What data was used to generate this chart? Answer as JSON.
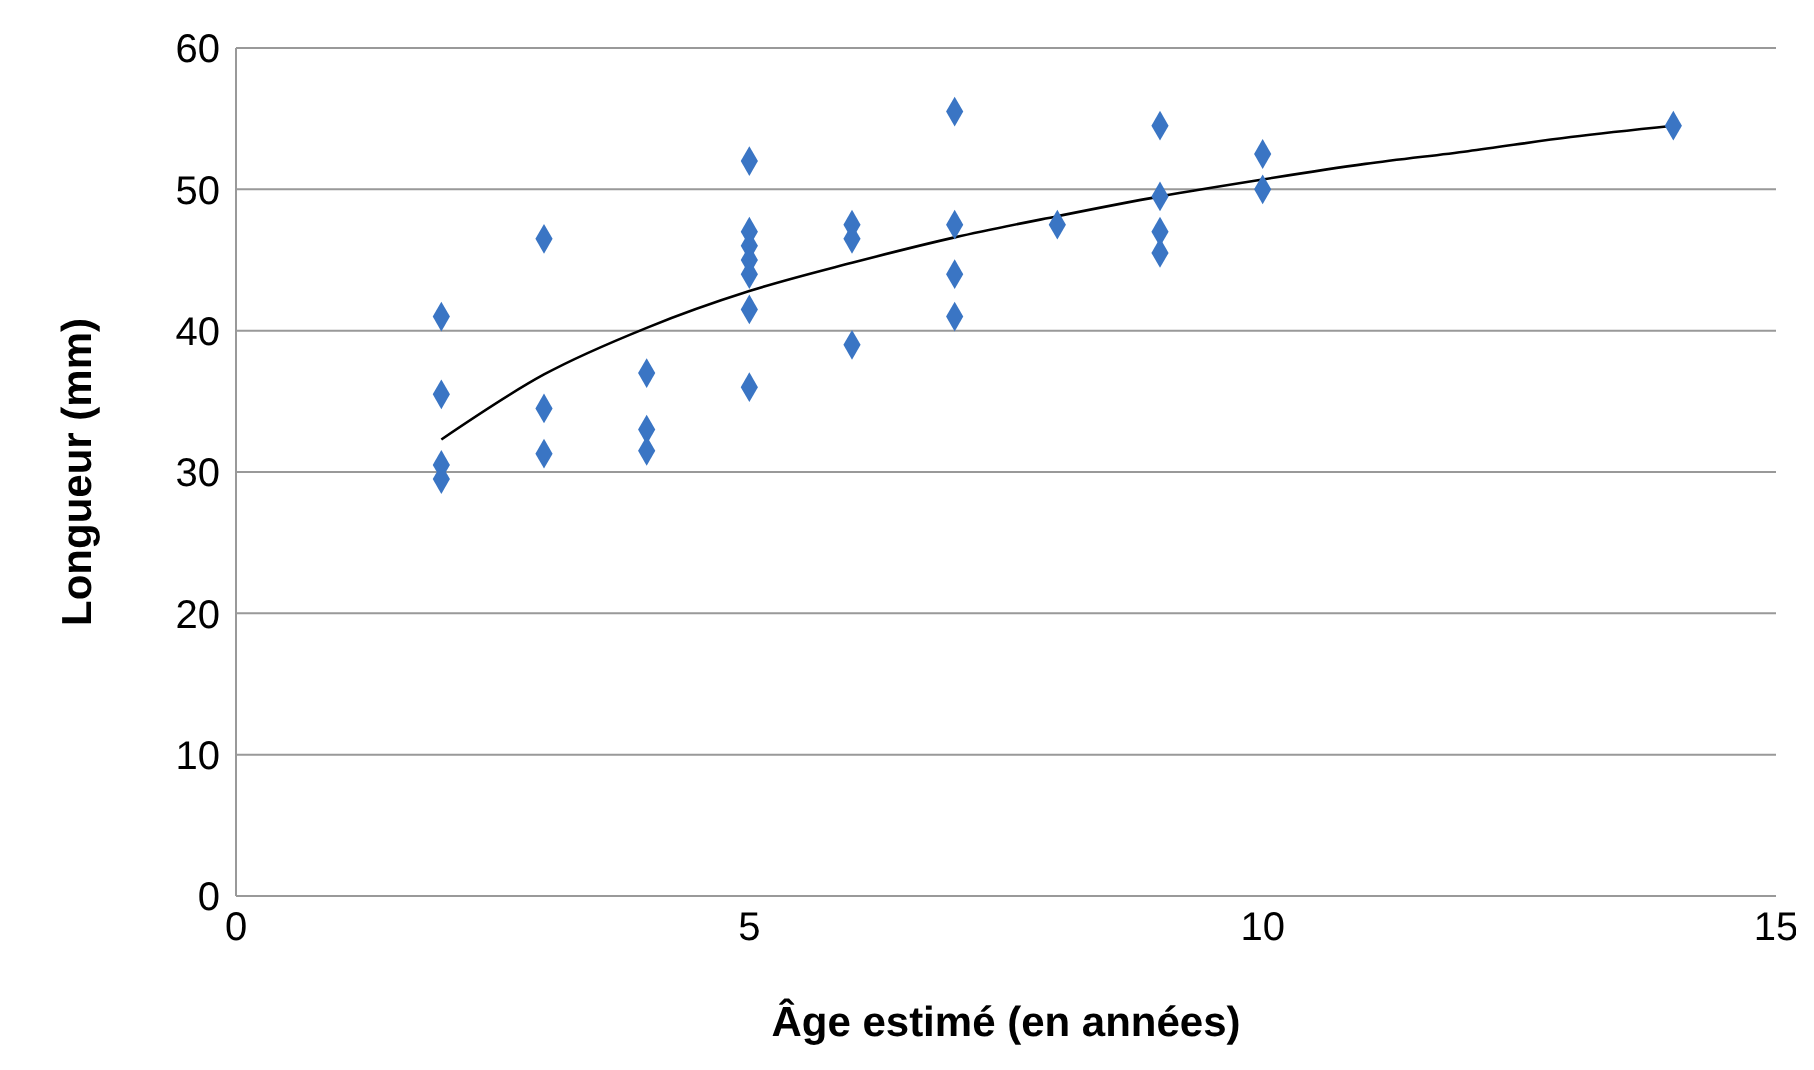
{
  "chart_data": {
    "type": "scatter",
    "xlabel": "Âge estimé (en années)",
    "ylabel": "Longueur (mm)",
    "xlim": [
      0,
      15
    ],
    "xticks": [
      0,
      5,
      10,
      15
    ],
    "ylim": [
      0,
      60
    ],
    "yticks": [
      0,
      10,
      20,
      30,
      40,
      50,
      60
    ],
    "grid": "y",
    "marker": "diamond",
    "legend": false,
    "series": [
      {
        "color": "#3a75c4",
        "x": [
          2,
          2,
          2,
          2,
          3,
          3,
          3,
          4,
          4,
          4,
          5,
          5,
          5,
          5,
          5,
          5,
          5,
          6,
          6,
          6,
          7,
          7,
          7,
          7,
          8,
          9,
          9,
          9,
          9,
          10,
          10,
          14
        ],
        "values": [
          41,
          35.5,
          30.5,
          29.5,
          46.5,
          34.5,
          31.3,
          37,
          33,
          31.5,
          52,
          47,
          46,
          45,
          44,
          41.5,
          36,
          47.5,
          46.5,
          39,
          55.5,
          47.5,
          44,
          41,
          47.5,
          54.5,
          49.5,
          47,
          45.5,
          52.5,
          50,
          54.5
        ]
      },
      {
        "type": "line",
        "color": "#000000",
        "marker": "none",
        "x": [
          2,
          3,
          4,
          5,
          6,
          7,
          8,
          9,
          10,
          11,
          12,
          13,
          14
        ],
        "values": [
          32.3,
          36.9,
          40.2,
          42.8,
          44.8,
          46.6,
          48.1,
          49.5,
          50.7,
          51.8,
          52.7,
          53.7,
          54.5
        ]
      }
    ]
  }
}
